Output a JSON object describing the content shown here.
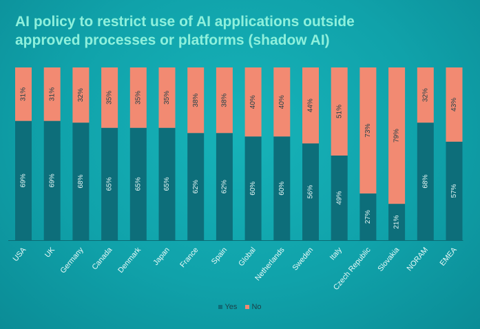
{
  "title": "AI policy to restrict use of AI applications outside approved processes or platforms (shadow AI)",
  "colors": {
    "yes": "#0d6e7a",
    "no": "#f28a72",
    "label_text": "#1c3f47",
    "axis": "#0b6a73"
  },
  "legend": {
    "yes": "Yes",
    "no": "No"
  },
  "chart_data": {
    "type": "bar",
    "stacked": true,
    "title": "AI policy to restrict use of AI applications outside approved processes or platforms (shadow AI)",
    "categories": [
      "USA",
      "UK",
      "Germany",
      "Canada",
      "Denmark",
      "Japan",
      "France",
      "Spain",
      "Global",
      "Netherlands",
      "Sweden",
      "Italy",
      "Czech Republic",
      "Slovakia",
      "NORAM",
      "EMEA"
    ],
    "series": [
      {
        "name": "Yes",
        "values": [
          69,
          69,
          68,
          65,
          65,
          65,
          62,
          62,
          60,
          60,
          56,
          49,
          27,
          21,
          68,
          57
        ],
        "labels": [
          "69%",
          "69%",
          "68%",
          "65%",
          "65%",
          "65%",
          "62%",
          "62%",
          "60%",
          "60%",
          "56%",
          "49%",
          "27%",
          "21%",
          "68%",
          "57%"
        ]
      },
      {
        "name": "No",
        "values": [
          31,
          31,
          32,
          35,
          35,
          35,
          38,
          38,
          40,
          40,
          44,
          51,
          73,
          79,
          32,
          43
        ],
        "labels": [
          "31%",
          "31%",
          "32%",
          "35%",
          "35%",
          "35%",
          "38%",
          "38%",
          "40%",
          "40%",
          "44%",
          "51%",
          "73%",
          "79%",
          "32%",
          "43%"
        ]
      }
    ],
    "ylim": [
      0,
      100
    ],
    "legend_position": "bottom"
  }
}
